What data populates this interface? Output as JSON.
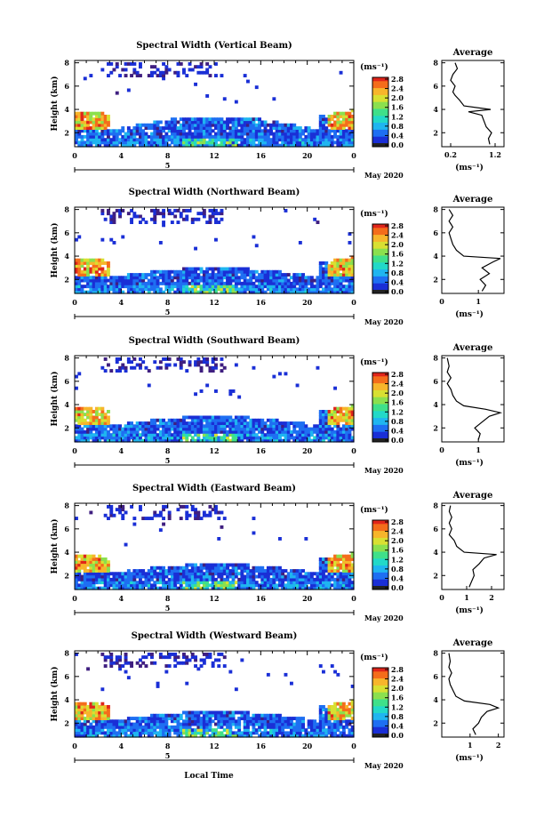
{
  "chart_data": [
    {
      "type": "heatmap",
      "title": "Spectral Width (Vertical Beam)",
      "ylabel": "Height (km)",
      "xticks": [
        "0",
        "4",
        "8",
        "12",
        "16",
        "20",
        "0"
      ],
      "yticks": [
        "2",
        "4",
        "6",
        "8"
      ],
      "xlim": [
        0,
        24
      ],
      "ylim": [
        0.8,
        8.2
      ],
      "date_marker": "5",
      "date_label": "May 2020",
      "units": "(ms⁻¹)",
      "colorbar": {
        "ticks": [
          "2.8",
          "2.4",
          "2.0",
          "1.6",
          "1.2",
          "0.8",
          "0.4",
          "0.0"
        ],
        "range": [
          0,
          2.8
        ]
      },
      "average": {
        "title": "Average",
        "xticks": [
          "0.2",
          "1.2"
        ],
        "xrange": [
          0,
          1.4
        ],
        "xlabel": "(ms⁻¹)",
        "yticks": [
          "2",
          "4",
          "6",
          "8"
        ],
        "profile": [
          [
            1.0,
            1.08
          ],
          [
            1.5,
            1.05
          ],
          [
            2.0,
            1.12
          ],
          [
            2.5,
            1.0
          ],
          [
            3.0,
            0.95
          ],
          [
            3.5,
            0.9
          ],
          [
            3.8,
            0.6
          ],
          [
            4.0,
            1.1
          ],
          [
            4.3,
            0.5
          ],
          [
            4.8,
            0.4
          ],
          [
            5.2,
            0.3
          ],
          [
            5.5,
            0.25
          ],
          [
            6.0,
            0.3
          ],
          [
            6.5,
            0.2
          ],
          [
            7.0,
            0.25
          ],
          [
            7.5,
            0.35
          ],
          [
            8.0,
            0.3
          ]
        ]
      }
    },
    {
      "type": "heatmap",
      "title": "Spectral Width (Northward Beam)",
      "ylabel": "Height (km)",
      "xticks": [
        "0",
        "4",
        "8",
        "12",
        "16",
        "20",
        "0"
      ],
      "yticks": [
        "2",
        "4",
        "6",
        "8"
      ],
      "xlim": [
        0,
        24
      ],
      "ylim": [
        0.8,
        8.2
      ],
      "date_marker": "5",
      "date_label": "May 2020",
      "units": "(ms⁻¹)",
      "colorbar": {
        "ticks": [
          "2.8",
          "2.4",
          "2.0",
          "1.6",
          "1.2",
          "0.8",
          "0.4",
          "0.0"
        ],
        "range": [
          0,
          2.8
        ]
      },
      "average": {
        "title": "Average",
        "xticks": [
          "0",
          "1"
        ],
        "xrange": [
          0,
          1.7
        ],
        "xlabel": "(ms⁻¹)",
        "yticks": [
          "2",
          "4",
          "6",
          "8"
        ],
        "profile": [
          [
            1.0,
            1.1
          ],
          [
            1.5,
            1.2
          ],
          [
            2.0,
            1.05
          ],
          [
            2.5,
            1.3
          ],
          [
            3.0,
            1.1
          ],
          [
            3.5,
            1.4
          ],
          [
            3.8,
            1.6
          ],
          [
            4.0,
            0.6
          ],
          [
            4.5,
            0.4
          ],
          [
            5.0,
            0.3
          ],
          [
            5.5,
            0.25
          ],
          [
            6.0,
            0.2
          ],
          [
            6.5,
            0.3
          ],
          [
            7.0,
            0.2
          ],
          [
            7.5,
            0.3
          ],
          [
            8.0,
            0.2
          ]
        ]
      }
    },
    {
      "type": "heatmap",
      "title": "Spectral Width (Southward Beam)",
      "ylabel": "Height (km)",
      "xticks": [
        "0",
        "4",
        "8",
        "12",
        "16",
        "20",
        "0"
      ],
      "yticks": [
        "2",
        "4",
        "6",
        "8"
      ],
      "xlim": [
        0,
        24
      ],
      "ylim": [
        0.8,
        8.2
      ],
      "date_marker": "5",
      "date_label": "May 2020",
      "units": "(ms⁻¹)",
      "colorbar": {
        "ticks": [
          "2.8",
          "2.4",
          "2.0",
          "1.6",
          "1.2",
          "0.8",
          "0.4",
          "0.0"
        ],
        "range": [
          0,
          2.8
        ]
      },
      "average": {
        "title": "Average",
        "xticks": [
          "0",
          "1"
        ],
        "xrange": [
          0,
          1.7
        ],
        "xlabel": "(ms⁻¹)",
        "yticks": [
          "2",
          "4",
          "6",
          "8"
        ],
        "profile": [
          [
            1.0,
            1.0
          ],
          [
            1.5,
            1.05
          ],
          [
            2.0,
            0.9
          ],
          [
            2.5,
            1.1
          ],
          [
            3.0,
            1.3
          ],
          [
            3.3,
            1.6
          ],
          [
            3.6,
            1.2
          ],
          [
            3.9,
            0.6
          ],
          [
            4.3,
            0.4
          ],
          [
            4.8,
            0.3
          ],
          [
            5.3,
            0.25
          ],
          [
            5.8,
            0.15
          ],
          [
            6.3,
            0.25
          ],
          [
            6.8,
            0.15
          ],
          [
            7.3,
            0.2
          ],
          [
            8.0,
            0.15
          ]
        ]
      }
    },
    {
      "type": "heatmap",
      "title": "Spectral Width (Eastward Beam)",
      "ylabel": "Height (km)",
      "xticks": [
        "0",
        "4",
        "8",
        "12",
        "16",
        "20",
        "0"
      ],
      "yticks": [
        "2",
        "4",
        "6",
        "8"
      ],
      "xlim": [
        0,
        24
      ],
      "ylim": [
        0.8,
        8.2
      ],
      "date_marker": "5",
      "date_label": "May 2020",
      "units": "(ms⁻¹)",
      "colorbar": {
        "ticks": [
          "2.8",
          "2.4",
          "2.0",
          "1.6",
          "1.2",
          "0.8",
          "0.4",
          "0.0"
        ],
        "range": [
          0,
          2.8
        ]
      },
      "average": {
        "title": "Average",
        "xticks": [
          "0",
          "1",
          "2"
        ],
        "xrange": [
          0,
          2.5
        ],
        "xlabel": "(ms⁻¹)",
        "yticks": [
          "2",
          "4",
          "6",
          "8"
        ],
        "profile": [
          [
            1.0,
            1.1
          ],
          [
            1.5,
            1.2
          ],
          [
            2.0,
            1.3
          ],
          [
            2.5,
            1.25
          ],
          [
            3.0,
            1.5
          ],
          [
            3.5,
            1.7
          ],
          [
            3.8,
            2.2
          ],
          [
            4.0,
            0.9
          ],
          [
            4.5,
            0.6
          ],
          [
            5.0,
            0.5
          ],
          [
            5.5,
            0.3
          ],
          [
            6.0,
            0.4
          ],
          [
            6.5,
            0.3
          ],
          [
            7.0,
            0.4
          ],
          [
            7.5,
            0.3
          ],
          [
            8.0,
            0.35
          ]
        ]
      }
    },
    {
      "type": "heatmap",
      "title": "Spectral Width (Westward Beam)",
      "ylabel": "Height (km)",
      "xticks": [
        "0",
        "4",
        "8",
        "12",
        "16",
        "20",
        "0"
      ],
      "yticks": [
        "2",
        "4",
        "6",
        "8"
      ],
      "xlim": [
        0,
        24
      ],
      "ylim": [
        0.8,
        8.2
      ],
      "date_marker": "5",
      "date_label": "May 2020",
      "units": "(ms⁻¹)",
      "colorbar": {
        "ticks": [
          "2.8",
          "2.4",
          "2.0",
          "1.6",
          "1.2",
          "0.8",
          "0.4",
          "0.0"
        ],
        "range": [
          0,
          2.8
        ]
      },
      "average": {
        "title": "Average",
        "xticks": [
          "1",
          "2"
        ],
        "xrange": [
          0,
          2.2
        ],
        "xlabel": "(ms⁻¹)",
        "yticks": [
          "2",
          "4",
          "6",
          "8"
        ],
        "profile": [
          [
            1.0,
            1.2
          ],
          [
            1.5,
            1.1
          ],
          [
            2.0,
            1.3
          ],
          [
            2.5,
            1.4
          ],
          [
            3.0,
            1.6
          ],
          [
            3.3,
            2.0
          ],
          [
            3.6,
            1.7
          ],
          [
            3.9,
            0.8
          ],
          [
            4.3,
            0.5
          ],
          [
            4.8,
            0.4
          ],
          [
            5.3,
            0.3
          ],
          [
            5.8,
            0.25
          ],
          [
            6.3,
            0.35
          ],
          [
            6.8,
            0.25
          ],
          [
            7.3,
            0.3
          ],
          [
            8.0,
            0.25
          ]
        ]
      }
    }
  ],
  "xlabel_bottom": "Local Time",
  "colormap": [
    "#3f1f80",
    "#1a2fd6",
    "#1e6ff2",
    "#1fb5f0",
    "#22d9c8",
    "#3fe08a",
    "#8be04e",
    "#d8e032",
    "#f7b52b",
    "#f46d1b",
    "#e0251a"
  ]
}
